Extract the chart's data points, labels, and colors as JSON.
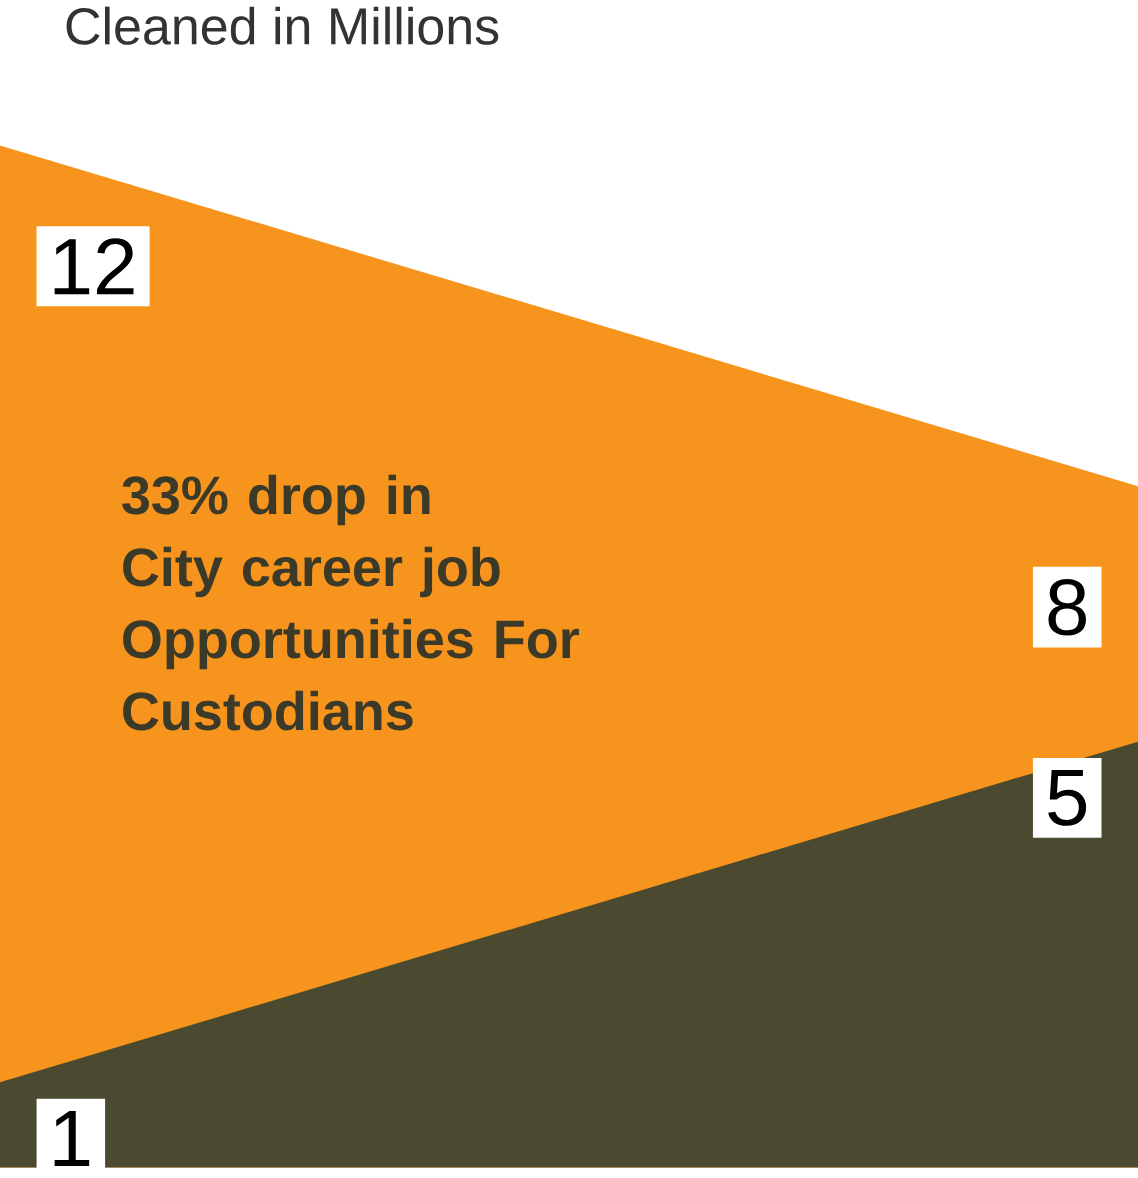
{
  "chart_data": {
    "type": "area",
    "title": "Cleaned in Millions",
    "categories": [
      null,
      null
    ],
    "series": [
      {
        "color": "#f7941d",
        "values": [
          12,
          8
        ]
      },
      {
        "color": "#4b4a30",
        "values": [
          1,
          5
        ]
      }
    ],
    "tick_labels": false,
    "data_labels": true,
    "legend": false,
    "annotations": [
      "33% drop in City career job Opportunities For Custodians"
    ]
  }
}
